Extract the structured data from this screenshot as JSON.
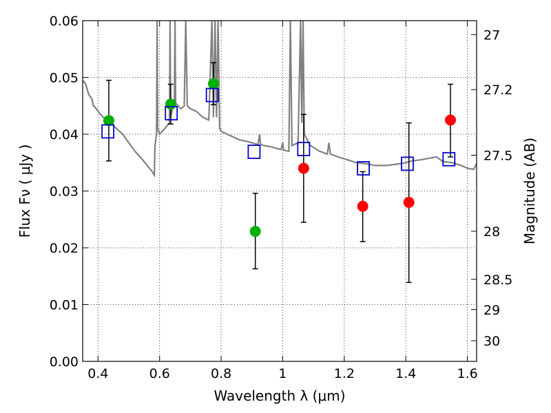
{
  "chart_data": {
    "type": "scatter",
    "xlabel": "Wavelength  λ (μm)",
    "ylabel": "Flux  Fν  ( μJy )",
    "y2label": "Magnitude (AB)",
    "xlim": [
      0.35,
      1.63
    ],
    "ylim": [
      0.0,
      0.06
    ],
    "grid": true,
    "x_ticks": [
      {
        "value": 0.4,
        "label": "0.4"
      },
      {
        "value": 0.6,
        "label": "0.6"
      },
      {
        "value": 0.8,
        "label": "0.8"
      },
      {
        "value": 1.0,
        "label": "1"
      },
      {
        "value": 1.2,
        "label": "1.2"
      },
      {
        "value": 1.4,
        "label": "1.4"
      },
      {
        "value": 1.6,
        "label": "1.6"
      }
    ],
    "y_ticks": [
      {
        "value": 0.0,
        "label": "0.00"
      },
      {
        "value": 0.01,
        "label": "0.01"
      },
      {
        "value": 0.02,
        "label": "0.02"
      },
      {
        "value": 0.03,
        "label": "0.03"
      },
      {
        "value": 0.04,
        "label": "0.04"
      },
      {
        "value": 0.05,
        "label": "0.05"
      },
      {
        "value": 0.06,
        "label": "0.06"
      }
    ],
    "y2_ticks": [
      {
        "value": 27.0,
        "label": "27"
      },
      {
        "value": 27.2,
        "label": "27.2"
      },
      {
        "value": 27.5,
        "label": "27.5"
      },
      {
        "value": 28.0,
        "label": "28"
      },
      {
        "value": 28.5,
        "label": "28.5"
      },
      {
        "value": 29.0,
        "label": "29"
      },
      {
        "value": 30.0,
        "label": "30"
      }
    ],
    "series": [
      {
        "marker": "circle",
        "color": "#00b000",
        "points": [
          {
            "x": 0.435,
            "y": 0.0424,
            "err_low": 0.0353,
            "err_high": 0.0495
          },
          {
            "x": 0.636,
            "y": 0.0453,
            "err_low": 0.0418,
            "err_high": 0.0488
          },
          {
            "x": 0.775,
            "y": 0.0489,
            "err_low": 0.0452,
            "err_high": 0.0526
          },
          {
            "x": 0.911,
            "y": 0.0229,
            "err_low": 0.0163,
            "err_high": 0.0296
          }
        ]
      },
      {
        "marker": "circle",
        "color": "#ff0000",
        "points": [
          {
            "x": 1.068,
            "y": 0.034,
            "err_low": 0.0245,
            "err_high": 0.0435
          },
          {
            "x": 1.26,
            "y": 0.0273,
            "err_low": 0.0211,
            "err_high": 0.0334
          },
          {
            "x": 1.41,
            "y": 0.028,
            "err_low": 0.0139,
            "err_high": 0.042
          },
          {
            "x": 1.545,
            "y": 0.0425,
            "err_low": 0.036,
            "err_high": 0.0488
          }
        ]
      },
      {
        "marker": "open-square",
        "color": "#0000cc",
        "points": [
          {
            "x": 0.432,
            "y": 0.0405
          },
          {
            "x": 0.638,
            "y": 0.0437
          },
          {
            "x": 0.771,
            "y": 0.0469
          },
          {
            "x": 0.907,
            "y": 0.0369
          },
          {
            "x": 1.068,
            "y": 0.0374
          },
          {
            "x": 1.262,
            "y": 0.034
          },
          {
            "x": 1.405,
            "y": 0.0348
          },
          {
            "x": 1.54,
            "y": 0.0356
          }
        ]
      },
      {
        "type": "line",
        "color": "#808080",
        "points": [
          [
            0.35,
            0.0495
          ],
          [
            0.36,
            0.0488
          ],
          [
            0.37,
            0.047
          ],
          [
            0.38,
            0.0462
          ],
          [
            0.385,
            0.045
          ],
          [
            0.39,
            0.0448
          ],
          [
            0.4,
            0.044
          ],
          [
            0.42,
            0.0428
          ],
          [
            0.44,
            0.042
          ],
          [
            0.46,
            0.041
          ],
          [
            0.48,
            0.04
          ],
          [
            0.5,
            0.0385
          ],
          [
            0.52,
            0.037
          ],
          [
            0.54,
            0.0358
          ],
          [
            0.56,
            0.0345
          ],
          [
            0.575,
            0.0335
          ],
          [
            0.583,
            0.0328
          ],
          [
            0.585,
            0.038
          ],
          [
            0.59,
            0.04
          ],
          [
            0.592,
            0.06
          ],
          [
            0.594,
            0.041
          ],
          [
            0.6,
            0.04
          ],
          [
            0.62,
            0.0412
          ],
          [
            0.632,
            0.042
          ],
          [
            0.634,
            0.06
          ],
          [
            0.636,
            0.043
          ],
          [
            0.64,
            0.044
          ],
          [
            0.648,
            0.0455
          ],
          [
            0.65,
            0.06
          ],
          [
            0.652,
            0.0455
          ],
          [
            0.66,
            0.045
          ],
          [
            0.67,
            0.0445
          ],
          [
            0.68,
            0.045
          ],
          [
            0.685,
            0.06
          ],
          [
            0.69,
            0.045
          ],
          [
            0.7,
            0.0445
          ],
          [
            0.72,
            0.044
          ],
          [
            0.74,
            0.043
          ],
          [
            0.76,
            0.0425
          ],
          [
            0.77,
            0.06
          ],
          [
            0.775,
            0.043
          ],
          [
            0.78,
            0.06
          ],
          [
            0.785,
            0.043
          ],
          [
            0.79,
            0.06
          ],
          [
            0.795,
            0.041
          ],
          [
            0.8,
            0.0405
          ],
          [
            0.82,
            0.04
          ],
          [
            0.84,
            0.0395
          ],
          [
            0.86,
            0.039
          ],
          [
            0.88,
            0.0388
          ],
          [
            0.9,
            0.0385
          ],
          [
            0.92,
            0.0382
          ],
          [
            0.925,
            0.04
          ],
          [
            0.928,
            0.0382
          ],
          [
            0.94,
            0.038
          ],
          [
            0.96,
            0.0378
          ],
          [
            0.98,
            0.0375
          ],
          [
            0.995,
            0.0373
          ],
          [
            1.0,
            0.0385
          ],
          [
            1.003,
            0.0372
          ],
          [
            1.02,
            0.037
          ],
          [
            1.025,
            0.06
          ],
          [
            1.03,
            0.038
          ],
          [
            1.05,
            0.0385
          ],
          [
            1.058,
            0.06
          ],
          [
            1.062,
            0.042
          ],
          [
            1.066,
            0.06
          ],
          [
            1.07,
            0.04
          ],
          [
            1.09,
            0.038
          ],
          [
            1.12,
            0.037
          ],
          [
            1.145,
            0.0365
          ],
          [
            1.15,
            0.0385
          ],
          [
            1.155,
            0.0365
          ],
          [
            1.18,
            0.036
          ],
          [
            1.21,
            0.0355
          ],
          [
            1.24,
            0.035
          ],
          [
            1.27,
            0.0348
          ],
          [
            1.3,
            0.0345
          ],
          [
            1.34,
            0.0345
          ],
          [
            1.38,
            0.0348
          ],
          [
            1.4,
            0.035
          ],
          [
            1.42,
            0.0353
          ],
          [
            1.45,
            0.0355
          ],
          [
            1.48,
            0.0358
          ],
          [
            1.5,
            0.036
          ],
          [
            1.52,
            0.0352
          ],
          [
            1.55,
            0.035
          ],
          [
            1.58,
            0.0345
          ],
          [
            1.6,
            0.034
          ],
          [
            1.62,
            0.0338
          ],
          [
            1.63,
            0.0348
          ]
        ]
      }
    ]
  }
}
